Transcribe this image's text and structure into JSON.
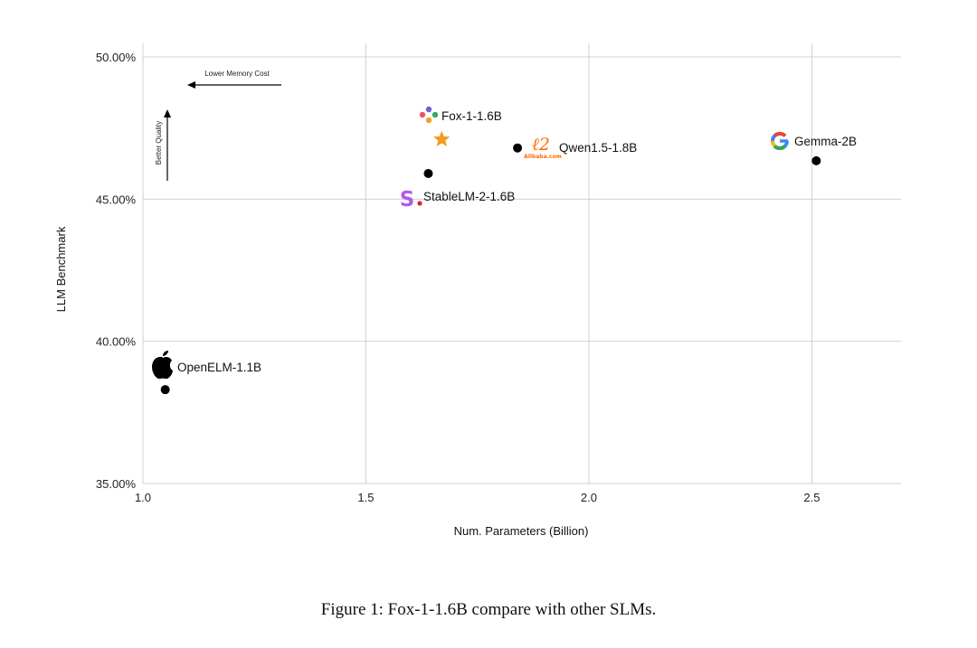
{
  "chart_data": {
    "type": "scatter",
    "xlabel": "Num. Parameters (Billion)",
    "ylabel": "LLM Benchmark",
    "xlim": [
      1.0,
      2.7
    ],
    "ylim": [
      35.0,
      50.0
    ],
    "x_ticks": [
      1.0,
      1.5,
      2.0,
      2.5
    ],
    "x_tick_labels": [
      "1.0",
      "1.5",
      "2.0",
      "2.5"
    ],
    "y_ticks": [
      35.0,
      40.0,
      45.0,
      50.0
    ],
    "y_tick_labels": [
      "35.00%",
      "40.00%",
      "45.00%",
      "50.00%"
    ],
    "grid": true,
    "points": [
      {
        "label": "Fox-1-1.6B",
        "x": 1.67,
        "y": 47.1,
        "marker": "star",
        "color": "#f29b1d",
        "logo": "fox-logo"
      },
      {
        "label": "Qwen1.5-1.8B",
        "x": 1.84,
        "y": 46.8,
        "marker": "dot",
        "color": "#000000",
        "logo": "alibaba-logo"
      },
      {
        "label": "Gemma-2B",
        "x": 2.51,
        "y": 46.35,
        "marker": "dot",
        "color": "#000000",
        "logo": "google-logo"
      },
      {
        "label": "StableLM-2-1.6B",
        "x": 1.64,
        "y": 45.9,
        "marker": "dot",
        "color": "#000000",
        "logo": "stability-logo"
      },
      {
        "label": "OpenELM-1.1B",
        "x": 1.05,
        "y": 38.3,
        "marker": "dot",
        "color": "#000000",
        "logo": "apple-logo"
      }
    ],
    "annotations": {
      "x_arrow": "Lower Memory Cost",
      "y_arrow": "Better Quality"
    }
  },
  "logo_text": {
    "alibaba": "Alibaba.com"
  },
  "caption": "Figure 1: Fox-1-1.6B compare with other SLMs."
}
